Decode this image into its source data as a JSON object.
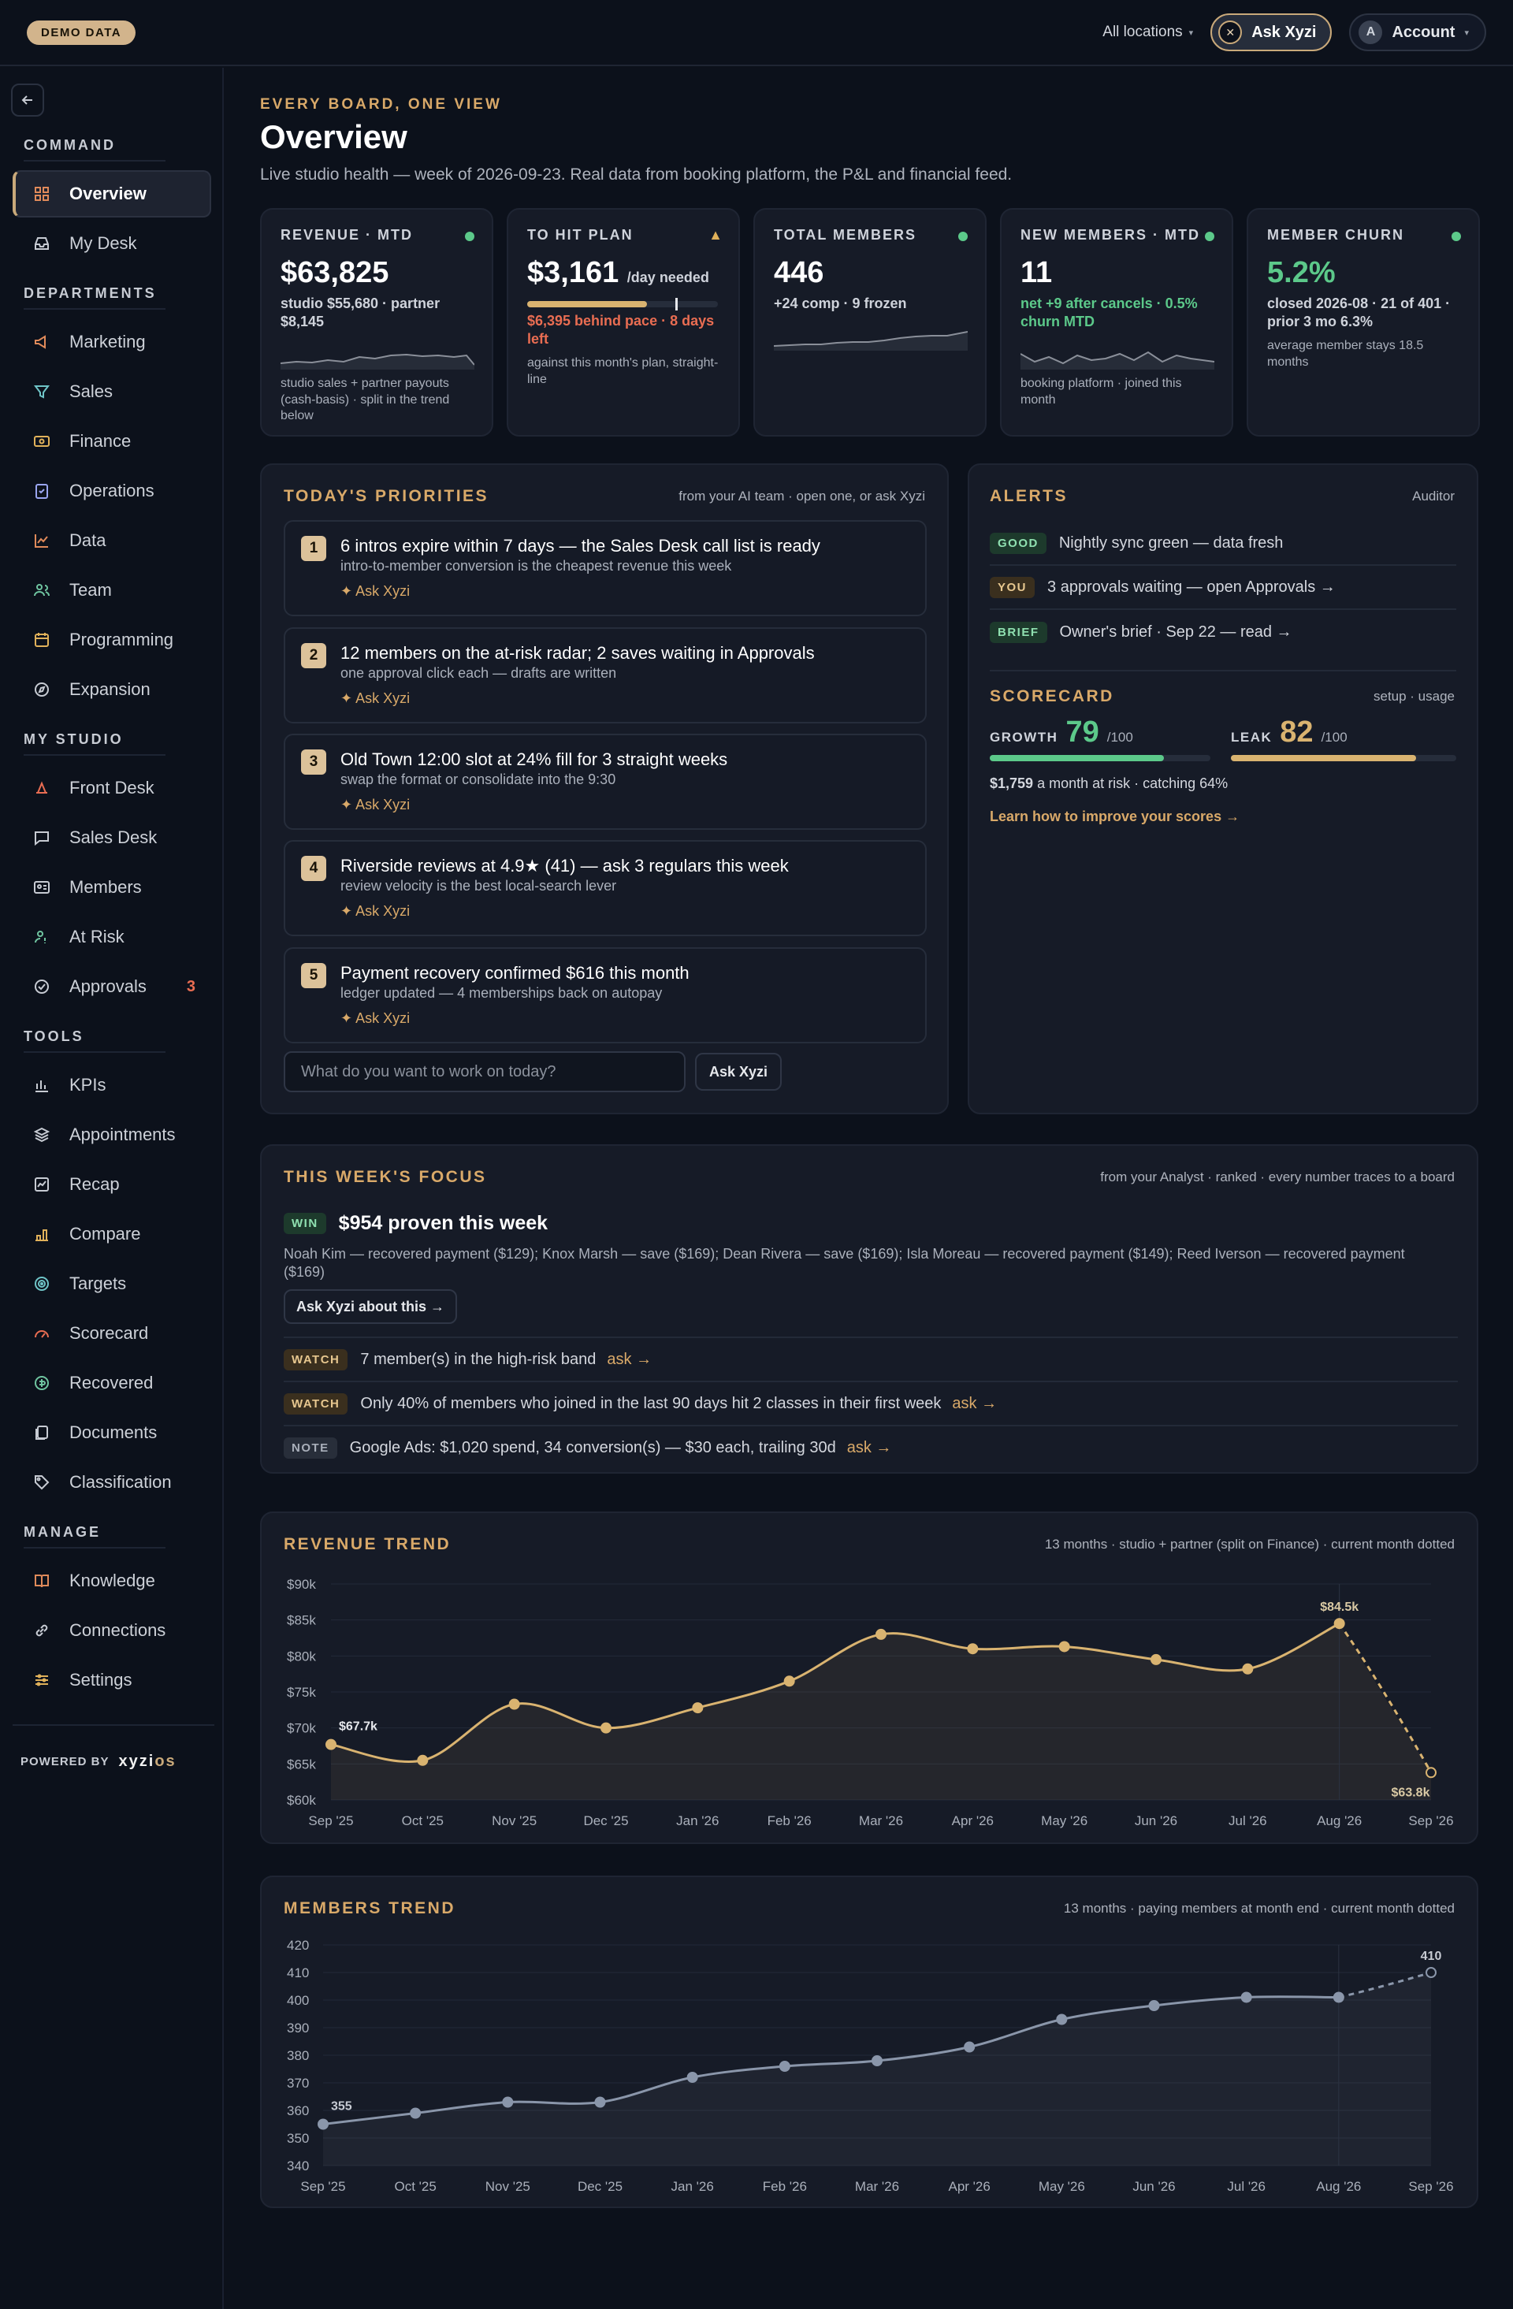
{
  "topbar": {
    "demo_badge": "DEMO DATA",
    "locations": "All locations",
    "ask_button": "Ask Xyzi",
    "account_initial": "A",
    "account": "Account"
  },
  "sidebar": {
    "sections": {
      "command": "COMMAND",
      "departments": "DEPARTMENTS",
      "my_studio": "MY STUDIO",
      "tools": "TOOLS",
      "manage": "MANAGE"
    },
    "items": [
      {
        "label": "Overview",
        "icon": "grid-icon"
      },
      {
        "label": "My Desk",
        "icon": "inbox-icon"
      },
      {
        "label": "Marketing",
        "icon": "megaphone-icon"
      },
      {
        "label": "Sales",
        "icon": "funnel-icon"
      },
      {
        "label": "Finance",
        "icon": "cash-icon"
      },
      {
        "label": "Operations",
        "icon": "clipboard-icon"
      },
      {
        "label": "Data",
        "icon": "line-chart-icon"
      },
      {
        "label": "Team",
        "icon": "people-icon"
      },
      {
        "label": "Programming",
        "icon": "calendar-icon"
      },
      {
        "label": "Expansion",
        "icon": "compass-icon"
      },
      {
        "label": "Front Desk",
        "icon": "bell-icon"
      },
      {
        "label": "Sales Desk",
        "icon": "chat-icon"
      },
      {
        "label": "Members",
        "icon": "id-card-icon"
      },
      {
        "label": "At Risk",
        "icon": "user-alert-icon"
      },
      {
        "label": "Approvals",
        "icon": "check-circle-icon",
        "badge": "3"
      },
      {
        "label": "KPIs",
        "icon": "bars-icon"
      },
      {
        "label": "Appointments",
        "icon": "layers-icon"
      },
      {
        "label": "Recap",
        "icon": "recap-icon"
      },
      {
        "label": "Compare",
        "icon": "compare-icon"
      },
      {
        "label": "Targets",
        "icon": "target-icon"
      },
      {
        "label": "Scorecard",
        "icon": "gauge-icon"
      },
      {
        "label": "Recovered",
        "icon": "recovered-icon"
      },
      {
        "label": "Documents",
        "icon": "documents-icon"
      },
      {
        "label": "Classification",
        "icon": "tag-icon"
      },
      {
        "label": "Knowledge",
        "icon": "book-icon"
      },
      {
        "label": "Connections",
        "icon": "link-icon"
      },
      {
        "label": "Settings",
        "icon": "sliders-icon"
      }
    ],
    "powered_by": "POWERED BY",
    "brand_a": "xyzi",
    "brand_b": "os"
  },
  "header": {
    "eyebrow": "EVERY BOARD, ONE VIEW",
    "title": "Overview",
    "subtitle": "Live studio health — week of 2026-09-23. Real data from booking platform, the P&L and financial feed."
  },
  "kpis": [
    {
      "label": "REVENUE · MTD",
      "value": "$63,825",
      "sub": "studio $55,680 · partner $8,145",
      "note": "studio sales + partner payouts (cash-basis) · split in the trend below",
      "status": "good"
    },
    {
      "label": "TO HIT PLAN",
      "value": "$3,161",
      "unit": "/day needed",
      "sub": "$6,395 behind pace · 8 days left",
      "note": "against this month's plan, straight-line",
      "status": "warn",
      "progress": 0.63
    },
    {
      "label": "TOTAL MEMBERS",
      "value": "446",
      "sub": "+24 comp · 9 frozen",
      "status": "good"
    },
    {
      "label": "NEW MEMBERS · MTD",
      "value": "11",
      "sub": "net +9 after cancels · 0.5% churn MTD",
      "note": "booking platform · joined this month",
      "status": "good"
    },
    {
      "label": "MEMBER CHURN",
      "value": "5.2%",
      "sub": "closed 2026-08 · 21 of 401 · prior 3 mo 6.3%",
      "note": "average member stays 18.5 months",
      "status": "good"
    }
  ],
  "priorities": {
    "heading": "TODAY'S PRIORITIES",
    "right": "from your AI team · open one, or ask Xyzi",
    "ask_label": "✦ Ask Xyzi",
    "items": [
      {
        "num": "1",
        "title": "6 intros expire within 7 days — the Sales Desk call list is ready",
        "sub": "intro-to-member conversion is the cheapest revenue this week"
      },
      {
        "num": "2",
        "title": "12 members on the at-risk radar; 2 saves waiting in Approvals",
        "sub": "one approval click each — drafts are written"
      },
      {
        "num": "3",
        "title": "Old Town 12:00 slot at 24% fill for 3 straight weeks",
        "sub": "swap the format or consolidate into the 9:30"
      },
      {
        "num": "4",
        "title": "Riverside reviews at 4.9★ (41) — ask 3 regulars this week",
        "sub": "review velocity is the best local-search lever"
      },
      {
        "num": "5",
        "title": "Payment recovery confirmed $616 this month",
        "sub": "ledger updated — 4 memberships back on autopay"
      }
    ],
    "input_placeholder": "What do you want to work on today?",
    "ask_button": "Ask Xyzi"
  },
  "alerts": {
    "heading": "ALERTS",
    "right": "Auditor",
    "items": [
      {
        "tag": "GOOD",
        "text": "Nightly sync green — data fresh"
      },
      {
        "tag": "YOU",
        "text": "3 approvals waiting — open Approvals →"
      },
      {
        "tag": "BRIEF",
        "text": "Owner's brief · Sep 22 — read →"
      }
    ]
  },
  "scorecard": {
    "heading": "SCORECARD",
    "right": "setup · usage",
    "growth_label": "GROWTH",
    "growth": "79",
    "leak_label": "LEAK",
    "leak": "82",
    "max": "/100",
    "growth_value": 79,
    "leak_value": 82,
    "risk_amount": "$1,759",
    "risk_text": "a month at risk · catching 64%",
    "link": "Learn how to improve your scores →",
    "colors": {
      "growth": "#5cc98a",
      "leak": "#d9b370"
    }
  },
  "focus": {
    "heading": "THIS WEEK'S FOCUS",
    "right": "from your Analyst · ranked · every number traces to a board",
    "win_tag": "WIN",
    "win_title": "$954 proven this week",
    "win_detail": "Noah Kim — recovered payment ($129); Knox Marsh — save ($169); Dean Rivera — save ($169); Isla Moreau — recovered payment ($149); Reed Iverson — recovered payment ($169)",
    "win_button": "Ask Xyzi about this →",
    "rows": [
      {
        "tag": "WATCH",
        "text": "7 member(s) in the high-risk band",
        "ask": "ask →"
      },
      {
        "tag": "WATCH",
        "text": "Only 40% of members who joined in the last 90 days hit 2 classes in their first week",
        "ask": "ask →"
      },
      {
        "tag": "NOTE",
        "text": "Google Ads: $1,020 spend, 34 conversion(s) — $30 each, trailing 30d",
        "ask": "ask →"
      }
    ]
  },
  "revenue_trend": {
    "heading": "REVENUE TREND",
    "right": "13 months · studio + partner (split on Finance) · current month dotted"
  },
  "members_trend": {
    "heading": "MEMBERS TREND",
    "right": "13 months · paying members at month end · current month dotted"
  },
  "chart_data": [
    {
      "type": "line",
      "title": "REVENUE TREND",
      "categories": [
        "Sep '25",
        "Oct '25",
        "Nov '25",
        "Dec '25",
        "Jan '26",
        "Feb '26",
        "Mar '26",
        "Apr '26",
        "May '26",
        "Jun '26",
        "Jul '26",
        "Aug '26",
        "Sep '26"
      ],
      "values": [
        67.7,
        65.5,
        73.3,
        70.0,
        72.8,
        76.5,
        83.0,
        81.0,
        81.3,
        79.5,
        78.2,
        84.5,
        63.8
      ],
      "tick_labels": [
        "$60k",
        "$65k",
        "$70k",
        "$75k",
        "$80k",
        "$85k",
        "$90k"
      ],
      "ylim": [
        60,
        90
      ],
      "ylabel_unit": "$k",
      "value_labels": {
        "0": "$67.7k",
        "11": "$84.5k",
        "12": "$63.8k"
      },
      "current_month_dotted": true,
      "grid": true,
      "color": "#d9b370"
    },
    {
      "type": "line",
      "title": "MEMBERS TREND",
      "categories": [
        "Sep '25",
        "Oct '25",
        "Nov '25",
        "Dec '25",
        "Jan '26",
        "Feb '26",
        "Mar '26",
        "Apr '26",
        "May '26",
        "Jun '26",
        "Jul '26",
        "Aug '26",
        "Sep '26"
      ],
      "values": [
        355,
        359,
        363,
        363,
        372,
        376,
        378,
        383,
        393,
        398,
        401,
        401,
        410
      ],
      "tick_labels": [
        "340",
        "350",
        "360",
        "370",
        "380",
        "390",
        "400",
        "410",
        "420"
      ],
      "ylim": [
        340,
        420
      ],
      "value_labels": {
        "0": "355",
        "12": "410"
      },
      "current_month_dotted": true,
      "grid": true,
      "color": "#8a96aa"
    }
  ]
}
